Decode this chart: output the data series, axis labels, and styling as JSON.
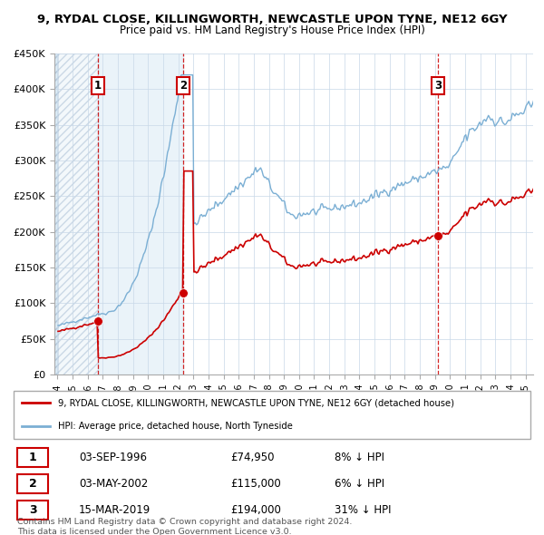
{
  "title1": "9, RYDAL CLOSE, KILLINGWORTH, NEWCASTLE UPON TYNE, NE12 6GY",
  "title2": "Price paid vs. HM Land Registry's House Price Index (HPI)",
  "ylim": [
    0,
    450000
  ],
  "yticks": [
    0,
    50000,
    100000,
    150000,
    200000,
    250000,
    300000,
    350000,
    400000,
    450000
  ],
  "ytick_labels": [
    "£0",
    "£50K",
    "£100K",
    "£150K",
    "£200K",
    "£250K",
    "£300K",
    "£350K",
    "£400K",
    "£450K"
  ],
  "hpi_color": "#7bafd4",
  "price_color": "#cc0000",
  "sale_marker_color": "#cc0000",
  "dashed_line_color": "#cc0000",
  "annotation_box_color": "#cc0000",
  "grid_color": "#c8d8e8",
  "bg_shade_color": "#daeaf5",
  "hatch_color": "#b0c4d8",
  "legend_label_red": "9, RYDAL CLOSE, KILLINGWORTH, NEWCASTLE UPON TYNE, NE12 6GY (detached house)",
  "legend_label_blue": "HPI: Average price, detached house, North Tyneside",
  "transactions": [
    {
      "label": "1",
      "date_num": 1996.67,
      "price": 74950,
      "text": "03-SEP-1996",
      "amount": "£74,950",
      "pct": "8% ↓ HPI"
    },
    {
      "label": "2",
      "date_num": 2002.33,
      "price": 115000,
      "text": "03-MAY-2002",
      "amount": "£115,000",
      "pct": "6% ↓ HPI"
    },
    {
      "label": "3",
      "date_num": 2019.2,
      "price": 194000,
      "text": "15-MAR-2019",
      "amount": "£194,000",
      "pct": "31% ↓ HPI"
    }
  ],
  "footer1": "Contains HM Land Registry data © Crown copyright and database right 2024.",
  "footer2": "This data is licensed under the Open Government Licence v3.0."
}
